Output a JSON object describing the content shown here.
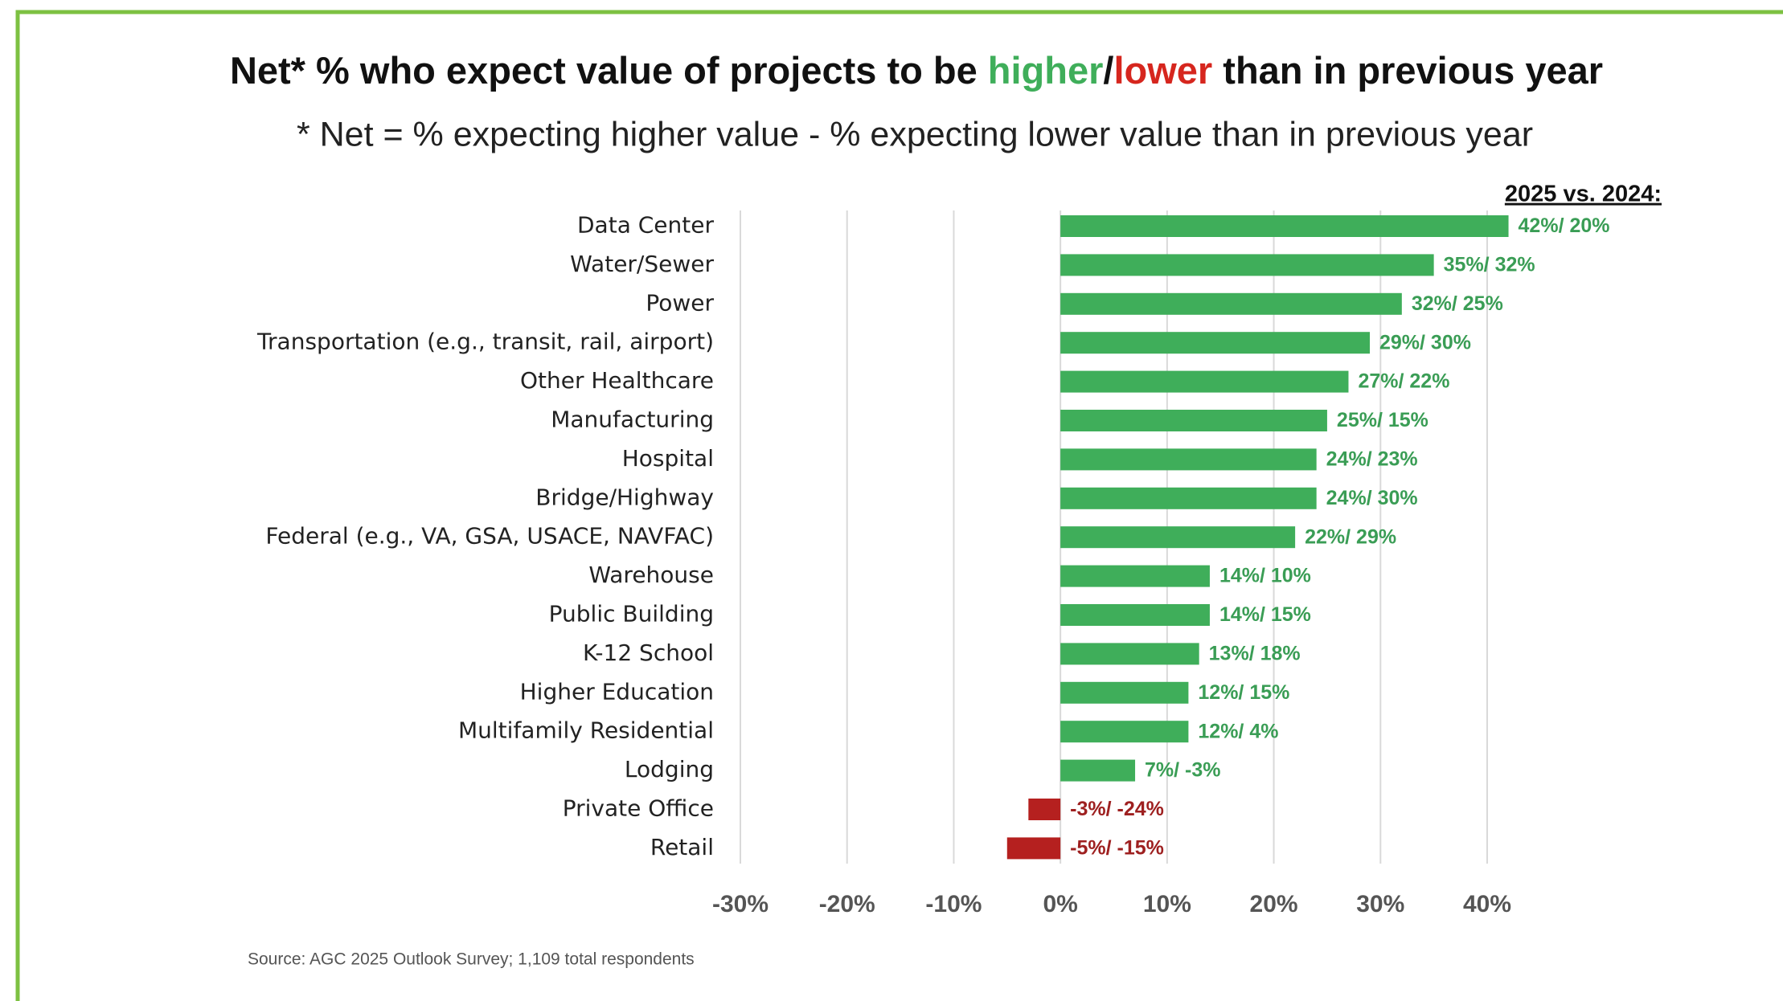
{
  "chart_data": {
    "type": "bar",
    "orientation": "horizontal",
    "title": {
      "before": "Net* % who expect value of projects to be ",
      "higher": "higher",
      "slash": "/",
      "lower": "lower",
      "after": " than in previous year"
    },
    "subtitle": "* Net = % expecting higher value - % expecting lower value than in previous year",
    "label_header": "2025 vs. 2024:",
    "source": "Source: AGC 2025 Outlook Survey; 1,109 total respondents",
    "categories": [
      "Data Center",
      "Water/Sewer",
      "Power",
      "Transportation (e.g., transit, rail, airport)",
      "Other Healthcare",
      "Manufacturing",
      "Hospital",
      "Bridge/Highway",
      "Federal (e.g., VA, GSA, USACE, NAVFAC)",
      "Warehouse",
      "Public Building",
      "K-12 School",
      "Higher Education",
      "Multifamily Residential",
      "Lodging",
      "Private Office",
      "Retail"
    ],
    "values": [
      42,
      35,
      32,
      29,
      27,
      25,
      24,
      24,
      22,
      14,
      14,
      13,
      12,
      12,
      7,
      -3,
      -5
    ],
    "value_labels": [
      "42%/ 20%",
      "35%/ 32%",
      "32%/ 25%",
      "29%/ 30%",
      "27%/ 22%",
      "25%/ 15%",
      "24%/ 23%",
      "24%/ 30%",
      "22%/ 29%",
      "14%/ 10%",
      "14%/ 15%",
      "13%/ 18%",
      "12%/ 15%",
      "12%/ 4%",
      "7%/ -3%",
      "-3%/ -24%",
      "-5%/ -15%"
    ],
    "positive_color": "#3fae5a",
    "negative_color": "#b5201f",
    "positive_label_color": "#3a9d55",
    "negative_label_color": "#9e2020",
    "xlim": [
      -30,
      40
    ],
    "xticks": [
      {
        "value": -30,
        "label": "-30%"
      },
      {
        "value": -20,
        "label": "-20%"
      },
      {
        "value": -10,
        "label": "-10%"
      },
      {
        "value": 0,
        "label": "0%"
      },
      {
        "value": 10,
        "label": "10%"
      },
      {
        "value": 20,
        "label": "20%"
      },
      {
        "value": 30,
        "label": "30%"
      },
      {
        "value": 40,
        "label": "40%"
      }
    ],
    "grid": true
  }
}
